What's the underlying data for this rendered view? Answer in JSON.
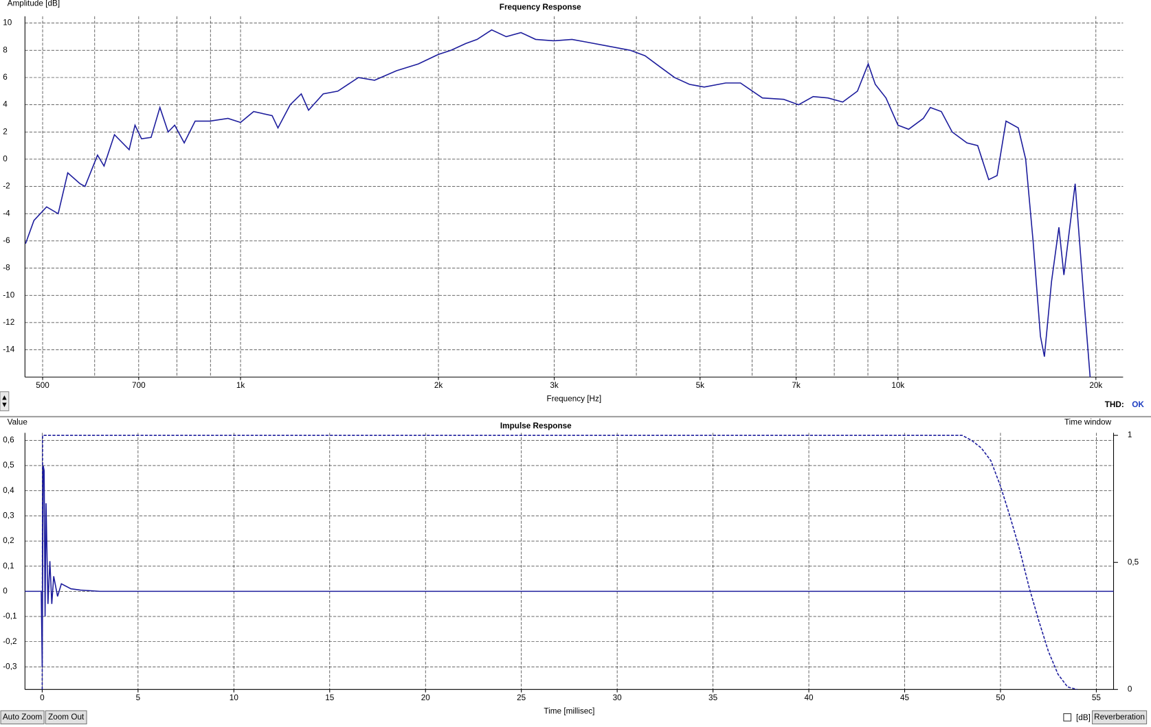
{
  "chart_data": [
    {
      "type": "line",
      "title": "Frequency Response",
      "xlabel": "Frequency [Hz]",
      "ylabel": "Amplitude [dB]",
      "xscale": "log",
      "xlim": [
        470,
        22000
      ],
      "ylim": [
        -16,
        10.5
      ],
      "xticks": [
        500,
        700,
        {
          "value": 1000,
          "label": "1k"
        },
        {
          "value": 2000,
          "label": "2k"
        },
        {
          "value": 3000,
          "label": "3k"
        },
        {
          "value": 5000,
          "label": "5k"
        },
        {
          "value": 7000,
          "label": "7k"
        },
        {
          "value": 10000,
          "label": "10k"
        },
        {
          "value": 20000,
          "label": "20k"
        }
      ],
      "xminorticks": [
        600,
        800,
        900,
        4000,
        6000,
        8000,
        9000
      ],
      "yticks": [
        -14,
        -12,
        -10,
        -8,
        -6,
        -4,
        -2,
        0,
        2,
        4,
        6,
        8,
        10
      ],
      "grid": true,
      "series": [
        {
          "color": "#1c1c9c",
          "x": [
            471,
            485,
            507,
            528,
            546,
            570,
            580,
            606,
            620,
            643,
            677,
            691,
            707,
            731,
            754,
            776,
            794,
            821,
            853,
            898,
            957,
            1000,
            1047,
            1117,
            1140,
            1190,
            1237,
            1269,
            1336,
            1406,
            1511,
            1599,
            1727,
            1864,
            2000,
            2090,
            2201,
            2290,
            2410,
            2536,
            2670,
            2811,
            2996,
            3193,
            3363,
            3629,
            3917,
            4124,
            4341,
            4573,
            4818,
            5073,
            5470,
            5760,
            6220,
            6700,
            7060,
            7430,
            7826,
            8240,
            8676,
            9010,
            9236,
            9588,
            10000,
            10380,
            10930,
            11200,
            11640,
            12090,
            12730,
            13220,
            13740,
            14150,
            14600,
            15240,
            15640,
            16050,
            16470,
            16700,
            17120,
            17570,
            17880,
            18600,
            19160,
            19600
          ],
          "values": [
            -6.2,
            -4.5,
            -3.5,
            -4,
            -1,
            -1.8,
            -2,
            0.3,
            -0.5,
            1.8,
            0.7,
            2.5,
            1.5,
            1.6,
            3.8,
            2,
            2.5,
            1.2,
            2.8,
            2.8,
            3,
            2.7,
            3.5,
            3.2,
            2.3,
            4,
            4.8,
            3.6,
            4.8,
            5,
            6,
            5.8,
            6.5,
            7,
            7.7,
            8,
            8.5,
            8.8,
            9.5,
            9,
            9.3,
            8.8,
            8.7,
            8.8,
            8.6,
            8.3,
            8,
            7.6,
            6.8,
            6,
            5.5,
            5.3,
            5.6,
            5.6,
            4.5,
            4.4,
            4,
            4.6,
            4.5,
            4.2,
            5,
            7,
            5.5,
            4.5,
            2.5,
            2.2,
            3,
            3.8,
            3.5,
            2,
            1.2,
            1,
            -1.5,
            -1.2,
            2.8,
            2.3,
            0,
            -6,
            -13,
            -14.5,
            -9,
            -5,
            -8.5,
            -1.8,
            -10,
            -16
          ]
        }
      ]
    },
    {
      "type": "line",
      "title": "Impulse Response",
      "xlabel": "Time [millisec]",
      "ylabel": "Value",
      "y2label": "Time window",
      "xlim": [
        -0.9,
        55.9
      ],
      "ylim": [
        -0.39,
        0.63
      ],
      "y2lim": [
        0,
        1.01
      ],
      "xticks": [
        0,
        5,
        10,
        15,
        20,
        25,
        30,
        35,
        40,
        45,
        50,
        55
      ],
      "yticks": [
        {
          "value": -0.3,
          "label": "-0,3"
        },
        {
          "value": -0.2,
          "label": "-0,2"
        },
        {
          "value": -0.1,
          "label": "-0,1"
        },
        0,
        {
          "value": 0.1,
          "label": "0,1"
        },
        {
          "value": 0.2,
          "label": "0,2"
        },
        {
          "value": 0.3,
          "label": "0,3"
        },
        {
          "value": 0.4,
          "label": "0,4"
        },
        {
          "value": 0.5,
          "label": "0,5"
        },
        {
          "value": 0.6,
          "label": "0,6"
        }
      ],
      "y2ticks": [
        0,
        {
          "value": 0.5,
          "label": "0,5"
        },
        1
      ],
      "grid": true,
      "series": [
        {
          "color": "#1c1c9c",
          "x": [
            -0.9,
            -0.05,
            0,
            0.05,
            0.1,
            0.15,
            0.2,
            0.3,
            0.4,
            0.5,
            0.6,
            0.8,
            1,
            1.5,
            2,
            3,
            55.9
          ],
          "values": [
            0,
            0,
            -0.3,
            0.5,
            0.48,
            -0.1,
            0.35,
            -0.05,
            0.12,
            -0.05,
            0.06,
            -0.02,
            0.03,
            0.01,
            0.005,
            0,
            0
          ]
        },
        {
          "color": "#1c1c9c",
          "axis": "y2",
          "dash": true,
          "x": [
            0,
            0.02,
            48,
            48.5,
            49,
            49.5,
            50,
            50.5,
            51,
            51.5,
            52,
            52.5,
            53,
            53.5,
            54
          ],
          "values": [
            0,
            1,
            1,
            0.98,
            0.95,
            0.9,
            0.8,
            0.68,
            0.55,
            0.4,
            0.27,
            0.15,
            0.06,
            0.01,
            0
          ]
        }
      ]
    }
  ],
  "ui": {
    "thd_label": "THD:",
    "thd_value": "OK",
    "buttons": [
      "Auto Zoom",
      "Zoom Out"
    ],
    "checkbox_label": "[dB]",
    "reverberation": "Reverberation"
  }
}
